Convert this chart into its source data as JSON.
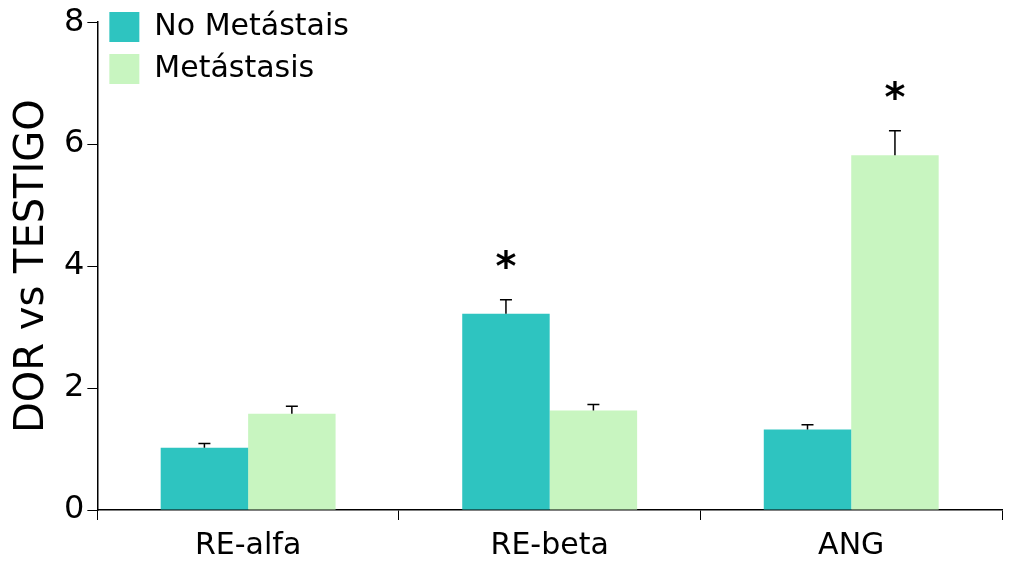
{
  "chart_data": {
    "type": "bar",
    "ylabel": "DOR vs TESTIGO",
    "categories": [
      "RE-alfa",
      "RE-beta",
      "ANG"
    ],
    "series": [
      {
        "name": "No Metástais",
        "color": "#2ec4c0",
        "values": [
          1.02,
          3.22,
          1.32
        ],
        "errors": [
          0.07,
          0.23,
          0.08
        ]
      },
      {
        "name": "Metástasis",
        "color": "#c8f5c0",
        "values": [
          1.58,
          1.63,
          5.82
        ],
        "errors": [
          0.12,
          0.1,
          0.4
        ]
      }
    ],
    "ylim": [
      0,
      8
    ],
    "yticks": [
      0,
      2,
      4,
      6,
      8
    ],
    "grid": false,
    "legend": "top left",
    "annotations": [
      "*",
      "*"
    ]
  }
}
